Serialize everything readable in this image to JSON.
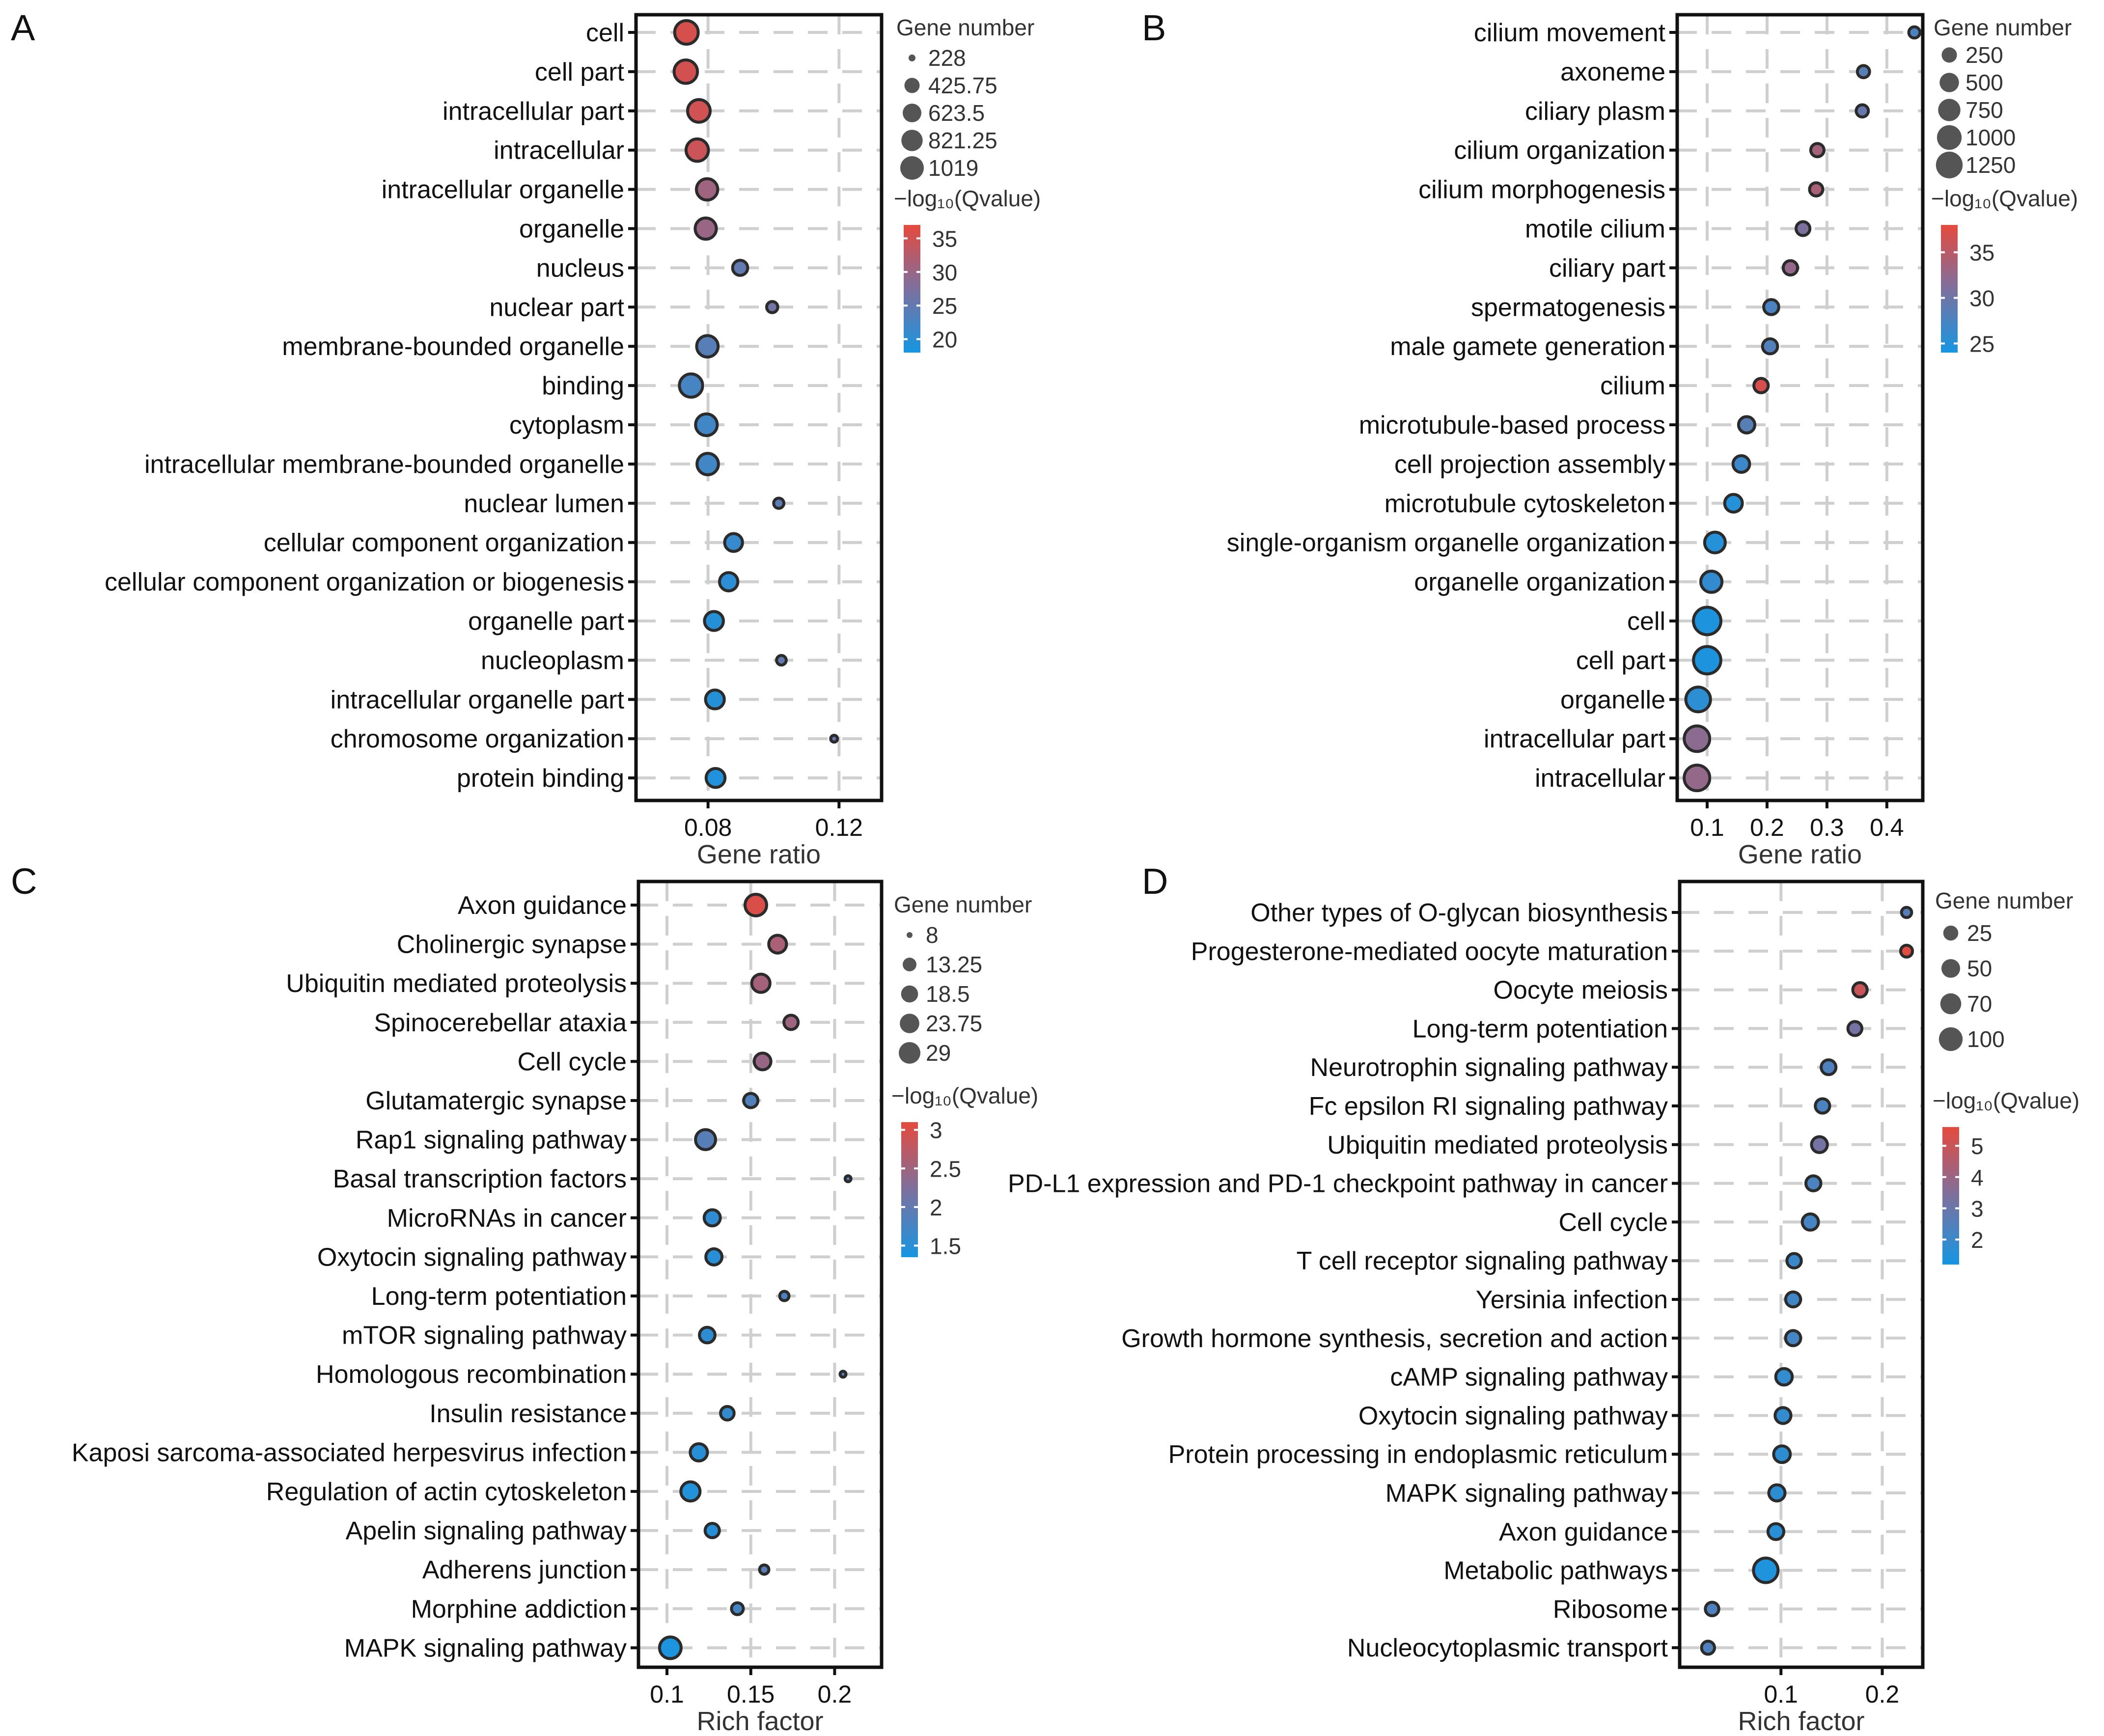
{
  "chart_data": [
    {
      "panel": "A",
      "type": "scatter",
      "xlabel": "Gene ratio",
      "xlim": [
        0.058,
        0.133
      ],
      "xticks": [
        "0.08",
        "0.12"
      ],
      "xtick_values": [
        0.08,
        0.12
      ],
      "size_legend_title": "Gene number",
      "size_legend": [
        "228",
        "425.75",
        "623.5",
        "821.25",
        "1019"
      ],
      "size_legend_values": [
        228,
        425.75,
        623.5,
        821.25,
        1019
      ],
      "size_range": [
        228,
        1019
      ],
      "color_legend_title": "−log₁₀(Qvalue)",
      "color_legend": [
        "35",
        "30",
        "25",
        "20"
      ],
      "color_legend_values": [
        35,
        30,
        25,
        20
      ],
      "color_range": [
        18,
        37
      ],
      "terms": [
        "cell",
        "cell part",
        "intracellular part",
        "intracellular",
        "intracellular organelle",
        "organelle",
        "nucleus",
        "nuclear part",
        "membrane-bounded organelle",
        "binding",
        "cytoplasm",
        "intracellular membrane-bounded organelle",
        "nuclear lumen",
        "cellular component organization",
        "cellular component organization or biogenesis",
        "organelle part",
        "nucleoplasm",
        "intracellular organelle part",
        "chromosome organization",
        "protein binding"
      ],
      "x": [
        0.0734,
        0.0732,
        0.0772,
        0.0767,
        0.0797,
        0.0793,
        0.0898,
        0.0996,
        0.0798,
        0.0748,
        0.0795,
        0.0799,
        0.1016,
        0.0878,
        0.0863,
        0.0818,
        0.1024,
        0.0821,
        0.1185,
        0.0823
      ],
      "size": [
        1019,
        1000,
        930,
        910,
        820,
        810,
        420,
        280,
        830,
        990,
        850,
        830,
        260,
        570,
        600,
        640,
        250,
        630,
        228,
        640
      ],
      "color": [
        35.5,
        35.2,
        35.0,
        34.5,
        30.5,
        30.0,
        25.0,
        26.5,
        24.0,
        22.5,
        22.0,
        22.0,
        24.5,
        21.0,
        20.0,
        19.5,
        25.0,
        19.5,
        25.5,
        19.0
      ]
    },
    {
      "panel": "B",
      "type": "scatter",
      "xlabel": "Gene ratio",
      "xlim": [
        0.05,
        0.46
      ],
      "xticks": [
        "0.1",
        "0.2",
        "0.3",
        "0.4"
      ],
      "xtick_values": [
        0.1,
        0.2,
        0.3,
        0.4
      ],
      "size_legend_title": "Gene number",
      "size_legend": [
        "250",
        "500",
        "750",
        "1000",
        "1250"
      ],
      "size_legend_values": [
        250,
        500,
        750,
        1000,
        1250
      ],
      "size_range": [
        100,
        1350
      ],
      "color_legend_title": "−log₁₀(Qvalue)",
      "color_legend": [
        "35",
        "30",
        "25"
      ],
      "color_legend_values": [
        35,
        30,
        25
      ],
      "color_range": [
        24,
        38
      ],
      "terms": [
        "cilium movement",
        "axoneme",
        "ciliary plasm",
        "cilium organization",
        "cilium morphogenesis",
        "motile cilium",
        "ciliary part",
        "spermatogenesis",
        "male gamete generation",
        "cilium",
        "microtubule-based process",
        "cell projection assembly",
        "microtubule cytoskeleton",
        "single-organism organelle organization",
        "organelle organization",
        "cell",
        "cell part",
        "organelle",
        "intracellular part",
        "intracellular"
      ],
      "x": [
        0.446,
        0.361,
        0.359,
        0.284,
        0.282,
        0.26,
        0.239,
        0.207,
        0.205,
        0.19,
        0.166,
        0.157,
        0.144,
        0.113,
        0.107,
        0.1,
        0.1,
        0.085,
        0.083,
        0.083
      ],
      "size": [
        120,
        140,
        140,
        170,
        170,
        190,
        210,
        240,
        240,
        210,
        300,
        320,
        380,
        600,
        650,
        1350,
        1330,
        1000,
        1100,
        1110
      ],
      "color": [
        27.5,
        28.5,
        29.5,
        33.5,
        34,
        31,
        32.5,
        27.5,
        28,
        37,
        28.5,
        26.5,
        25,
        25,
        26,
        24.5,
        24.5,
        25.5,
        32,
        32.5
      ]
    },
    {
      "panel": "C",
      "type": "scatter",
      "xlabel": "Rich factor",
      "xlim": [
        0.083,
        0.228
      ],
      "xticks": [
        "0.1",
        "0.15",
        "0.2"
      ],
      "xtick_values": [
        0.1,
        0.15,
        0.2
      ],
      "size_legend_title": "Gene number",
      "size_legend": [
        "8",
        "13.25",
        "18.5",
        "23.75",
        "29"
      ],
      "size_legend_values": [
        8,
        13.25,
        18.5,
        23.75,
        29
      ],
      "size_range": [
        8,
        29
      ],
      "color_legend_title": "−log₁₀(Qvalue)",
      "color_legend": [
        "3",
        "2.5",
        "2",
        "1.5"
      ],
      "color_legend_values": [
        3,
        2.5,
        2,
        1.5
      ],
      "color_range": [
        1.35,
        3.1
      ],
      "terms": [
        "Axon guidance",
        "Cholinergic synapse",
        "Ubiquitin mediated proteolysis",
        "Spinocerebellar ataxia",
        "Cell cycle",
        "Glutamatergic synapse",
        "Rap1 signaling pathway",
        "Basal transcription factors",
        "MicroRNAs in cancer",
        "Oxytocin signaling pathway",
        "Long-term potentiation",
        "mTOR signaling pathway",
        "Homologous recombination",
        "Insulin resistance",
        "Kaposi sarcoma-associated herpesvirus infection",
        "Regulation of actin cytoskeleton",
        "Apelin signaling pathway",
        "Adherens junction",
        "Morphine addiction",
        "MAPK signaling pathway"
      ],
      "x": [
        0.153,
        0.166,
        0.156,
        0.174,
        0.157,
        0.15,
        0.123,
        0.208,
        0.127,
        0.128,
        0.17,
        0.124,
        0.205,
        0.136,
        0.119,
        0.114,
        0.127,
        0.158,
        0.142,
        0.102
      ],
      "size": [
        29,
        20,
        21,
        14,
        18,
        14,
        25,
        8,
        17,
        17,
        9,
        16,
        8,
        13,
        19,
        23,
        14,
        9,
        11,
        29
      ],
      "color": [
        3.0,
        2.6,
        2.55,
        2.5,
        2.45,
        1.85,
        1.9,
        1.9,
        1.55,
        1.5,
        1.8,
        1.55,
        1.9,
        1.6,
        1.5,
        1.45,
        1.5,
        1.9,
        1.75,
        1.4
      ]
    },
    {
      "panel": "D",
      "type": "scatter",
      "xlabel": "Rich factor",
      "xlim": [
        0.0,
        0.24
      ],
      "xticks": [
        "0.1",
        "0.2"
      ],
      "xtick_values": [
        0.1,
        0.2
      ],
      "size_legend_title": "Gene number",
      "size_legend": [
        "25",
        "50",
        "70",
        "100"
      ],
      "size_legend_values": [
        25,
        50,
        70,
        100
      ],
      "size_range": [
        6,
        110
      ],
      "color_legend_title": "−log₁₀(Qvalue)",
      "color_legend": [
        "5",
        "4",
        "3",
        "2"
      ],
      "color_legend_values": [
        5,
        4,
        3,
        2
      ],
      "color_range": [
        1.2,
        5.6
      ],
      "terms": [
        "Other types of O-glycan biosynthesis",
        "Progesterone-mediated oocyte maturation",
        "Oocyte meiosis",
        "Long-term potentiation",
        "Neurotrophin signaling pathway",
        "Fc epsilon RI signaling pathway",
        "Ubiquitin mediated proteolysis",
        "PD-L1 expression and PD-1 checkpoint pathway in cancer",
        "Cell cycle",
        "T cell receptor signaling pathway",
        "Yersinia infection",
        "Growth hormone synthesis, secretion and action",
        "cAMP signaling pathway",
        "Oxytocin signaling pathway",
        "Protein processing in endoplasmic reticulum",
        "MAPK signaling pathway",
        "Axon guidance",
        "Metabolic pathways",
        "Ribosome",
        "Nucleocytoplasmic transport"
      ],
      "x": [
        0.224,
        0.224,
        0.178,
        0.173,
        0.147,
        0.141,
        0.138,
        0.132,
        0.129,
        0.113,
        0.112,
        0.112,
        0.103,
        0.102,
        0.101,
        0.096,
        0.095,
        0.085,
        0.032,
        0.028
      ],
      "size": [
        8,
        12,
        22,
        20,
        24,
        22,
        30,
        25,
        32,
        22,
        25,
        26,
        34,
        30,
        35,
        32,
        30,
        110,
        18,
        16
      ],
      "color": [
        2.6,
        5.5,
        5.0,
        3.2,
        2.4,
        2.3,
        3.2,
        2.3,
        2.2,
        2.0,
        2.1,
        2.2,
        1.8,
        1.8,
        1.7,
        1.7,
        1.6,
        1.4,
        2.4,
        2.4
      ]
    }
  ]
}
